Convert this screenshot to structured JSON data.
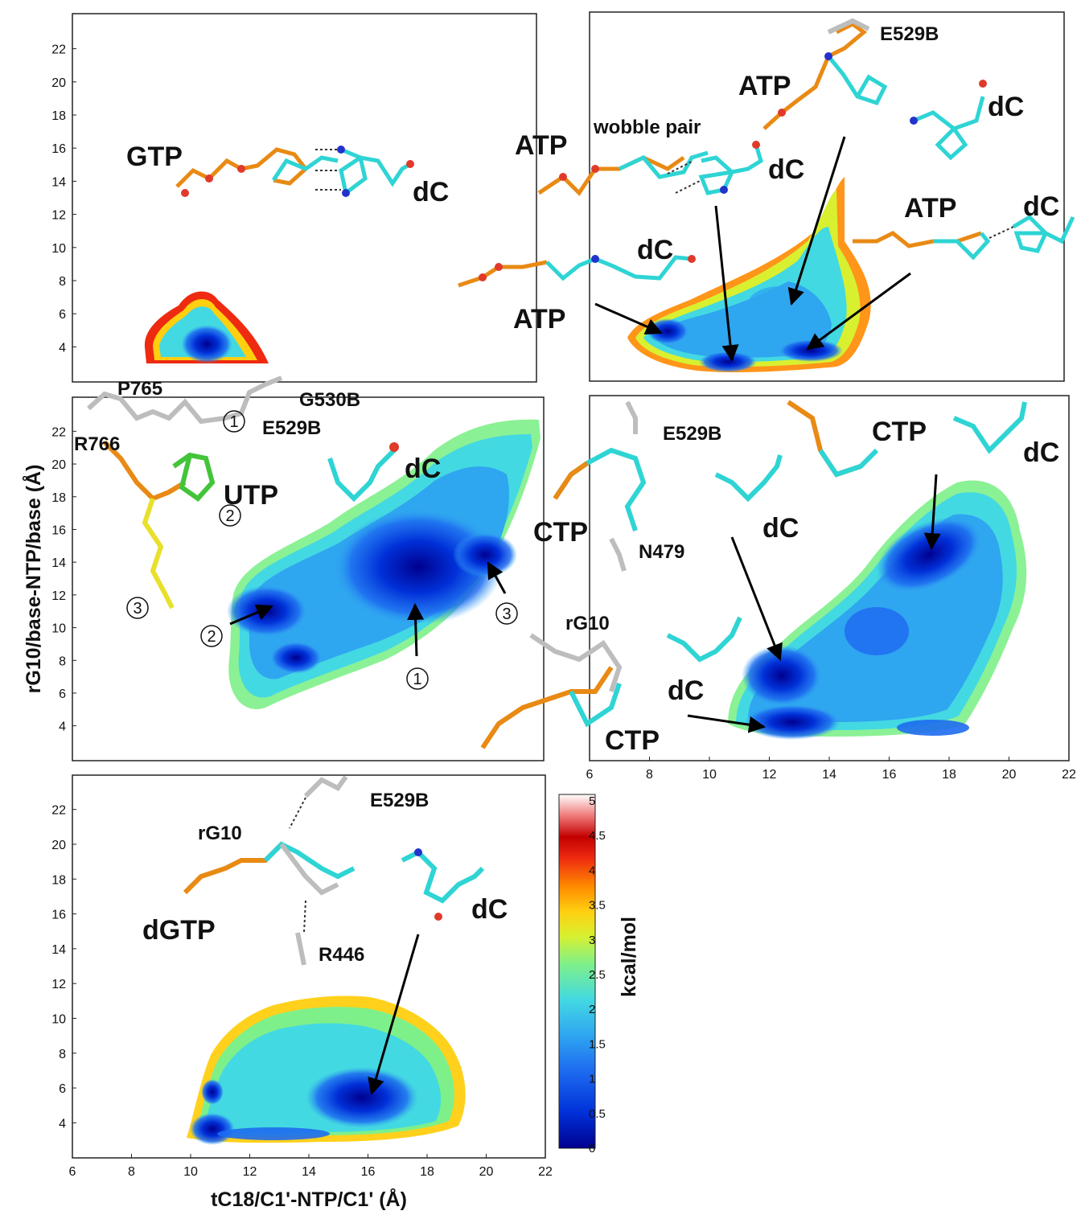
{
  "colors": {
    "scale": [
      "#00008f",
      "#0030d8",
      "#1e6cf0",
      "#2fa6f0",
      "#43d9e2",
      "#7ef08a",
      "#d8f030",
      "#ffcf10",
      "#ff8a00",
      "#ee2a10",
      "#c20000",
      "#ffffff"
    ],
    "carbon_cyan": "#2fd4d4",
    "carbon_grey": "#bdbdbd",
    "carbon_green": "#44c43a",
    "carbon_yellow": "#e8e02a",
    "phosphate_orange": "#e88a14",
    "oxygen_red": "#e03a2a",
    "nitrogen_blue": "#2233cc"
  },
  "chart_data": [
    {
      "type": "heatmap",
      "panel": "GTP",
      "xlabel": "",
      "ylabel": "",
      "xlim": [
        6,
        22
      ],
      "ylim": [
        3,
        23
      ],
      "xticks": [],
      "yticks": [
        "4",
        "6",
        "8",
        "10",
        "12",
        "14",
        "16",
        "18",
        "20",
        "22"
      ],
      "basins": [
        {
          "x": 10.9,
          "y": 4.9,
          "depth": 0.5
        }
      ],
      "annotations": [
        "GTP",
        "dC"
      ]
    },
    {
      "type": "heatmap",
      "panel": "ATP",
      "xlabel": "",
      "ylabel": "",
      "xlim": [
        6,
        22
      ],
      "ylim": [
        3,
        23
      ],
      "xticks": [],
      "yticks": [],
      "basins": [
        {
          "x": 8.6,
          "y": 5.3,
          "depth": 0.6
        },
        {
          "x": 10.8,
          "y": 4.0,
          "depth": 0.2
        },
        {
          "x": 13.0,
          "y": 4.6,
          "depth": 0.8
        },
        {
          "x": 12.5,
          "y": 7.0,
          "depth": 1.6
        }
      ],
      "annotations": [
        "E529B",
        "ATP",
        "dC",
        "wobble pair",
        "ATP",
        "dC",
        "ATP",
        "dC",
        "dC",
        "ATP"
      ]
    },
    {
      "type": "heatmap",
      "panel": "UTP",
      "xlabel": "",
      "ylabel": "rG10/base-NTP/base (Å)",
      "xlim": [
        6,
        22
      ],
      "ylim": [
        3,
        23
      ],
      "xticks": [],
      "yticks": [
        "4",
        "6",
        "8",
        "10",
        "12",
        "14",
        "16",
        "18",
        "20",
        "22"
      ],
      "basins": [
        {
          "x": 17.8,
          "y": 12.6,
          "depth": 0.3,
          "label": "1"
        },
        {
          "x": 12.8,
          "y": 11.4,
          "depth": 0.5,
          "label": "2"
        },
        {
          "x": 20.0,
          "y": 14.0,
          "depth": 0.8,
          "label": "3"
        },
        {
          "x": 13.6,
          "y": 8.7,
          "depth": 0.6
        }
      ],
      "annotations": [
        "P765",
        "G530B",
        "R766",
        "E529B",
        "UTP",
        "dC",
        "1",
        "2",
        "3",
        "2",
        "1",
        "3"
      ]
    },
    {
      "type": "heatmap",
      "panel": "CTP",
      "xlabel": "",
      "ylabel": "",
      "xlim": [
        6,
        22
      ],
      "ylim": [
        3,
        23
      ],
      "xticks": [
        "6",
        "8",
        "10",
        "12",
        "14",
        "16",
        "18",
        "20",
        "22"
      ],
      "yticks": [],
      "basins": [
        {
          "x": 17.0,
          "y": 14.0,
          "depth": 0.4
        },
        {
          "x": 12.5,
          "y": 7.5,
          "depth": 0.3
        },
        {
          "x": 12.8,
          "y": 4.6,
          "depth": 0.3
        },
        {
          "x": 15.6,
          "y": 10.0,
          "depth": 1.0
        },
        {
          "x": 18.2,
          "y": 4.8,
          "depth": 1.0
        }
      ],
      "annotations": [
        "E529B",
        "CTP",
        "dC",
        "CTP",
        "N479",
        "dC",
        "rG10",
        "dC",
        "CTP"
      ]
    },
    {
      "type": "heatmap",
      "panel": "dGTP",
      "xlabel": "tC18/C1'-NTP/C1' (Å)",
      "ylabel": "",
      "xlim": [
        6,
        22
      ],
      "ylim": [
        3,
        23
      ],
      "xticks": [
        "6",
        "8",
        "10",
        "12",
        "14",
        "16",
        "18",
        "20",
        "22"
      ],
      "yticks": [
        "4",
        "6",
        "8",
        "10",
        "12",
        "14",
        "16",
        "18",
        "20",
        "22"
      ],
      "basins": [
        {
          "x": 10.8,
          "y": 4.4,
          "depth": 0.3
        },
        {
          "x": 16.0,
          "y": 5.5,
          "depth": 0.5
        },
        {
          "x": 10.8,
          "y": 6.2,
          "depth": 0.8
        },
        {
          "x": 13.0,
          "y": 4.2,
          "depth": 1.2
        }
      ],
      "annotations": [
        "E529B",
        "rG10",
        "dC",
        "dGTP",
        "R446"
      ]
    },
    {
      "type": "colorbar",
      "label": "kcal/mol",
      "range": [
        0,
        5
      ],
      "ticks": [
        "0",
        "0.5",
        "1",
        "1.5",
        "2",
        "2.5",
        "3",
        "3.5",
        "4",
        "4.5",
        "5"
      ]
    }
  ]
}
